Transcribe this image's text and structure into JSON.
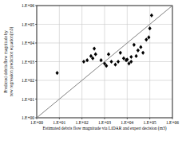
{
  "chart_data": {
    "type": "scatter",
    "x_label": "Estimated debris flow magnitude via LiDAR and expert decision (m3)",
    "y_label": "Predicted debris flow magnitude by new regression prediction equation(m3)",
    "log": true,
    "grid": true,
    "xlim": [
      1,
      1000000
    ],
    "ylim": [
      1,
      1000000
    ],
    "xticks": [
      {
        "value": 1,
        "label": "1.E+00"
      },
      {
        "value": 10,
        "label": "1.E+01"
      },
      {
        "value": 100,
        "label": "1.E+02"
      },
      {
        "value": 1000,
        "label": "1.E+03"
      },
      {
        "value": 10000,
        "label": "1.E+04"
      },
      {
        "value": 100000,
        "label": "1.E+05"
      },
      {
        "value": 1000000,
        "label": "1.E+06"
      }
    ],
    "yticks": [
      {
        "value": 1,
        "label": "1.E+00"
      },
      {
        "value": 10,
        "label": "1.E+01"
      },
      {
        "value": 100,
        "label": "1.E+02"
      },
      {
        "value": 1000,
        "label": "1.E+03"
      },
      {
        "value": 10000,
        "label": "1.E+04"
      },
      {
        "value": 100000,
        "label": "1.E+05"
      },
      {
        "value": 1000000,
        "label": "1.E+06"
      }
    ],
    "series": [
      {
        "type": "scatter",
        "marker": "diamond",
        "color": "#000000",
        "x": [
          8,
          120,
          170,
          250,
          300,
          350,
          400,
          700,
          1000,
          1500,
          1200,
          3000,
          4000,
          5000,
          7000,
          9000,
          10000,
          12000,
          15000,
          20000,
          25000,
          30000,
          40000,
          50000,
          70000,
          100000,
          120000,
          90000,
          2000,
          15000
        ],
        "values": [
          250,
          1000,
          1200,
          2000,
          1500,
          5000,
          2500,
          1200,
          800,
          2500,
          600,
          700,
          1000,
          3000,
          1500,
          1200,
          1300,
          800,
          1800,
          8000,
          2000,
          4000,
          6000,
          3000,
          15000,
          60000,
          300000,
          20000,
          1000,
          1000
        ]
      },
      {
        "type": "line",
        "color": "#808080",
        "line_style": "solid",
        "x": [
          1,
          1000000
        ],
        "values": [
          1,
          1000000
        ]
      }
    ]
  }
}
